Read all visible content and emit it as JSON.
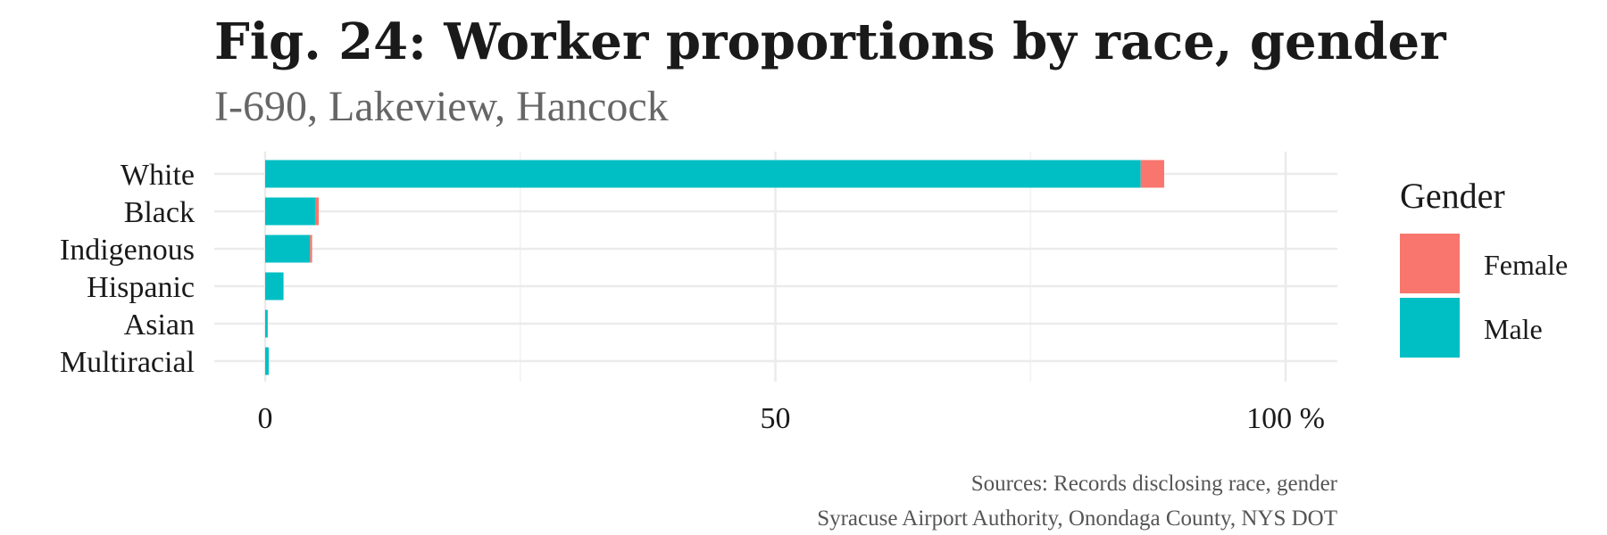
{
  "colors": {
    "female": "#F8766D",
    "male": "#00BFC4"
  },
  "chart_data": {
    "type": "bar",
    "orientation": "horizontal",
    "stacked": true,
    "title": "Fig. 24: Worker proportions by race, gender",
    "subtitle": "I-690, Lakeview, Hancock",
    "categories": [
      "White",
      "Black",
      "Indigenous",
      "Hispanic",
      "Asian",
      "Multiracial"
    ],
    "series": [
      {
        "name": "Male",
        "values": [
          85.8,
          4.9,
          4.4,
          1.8,
          0.25,
          0.35
        ]
      },
      {
        "name": "Female",
        "values": [
          2.3,
          0.35,
          0.2,
          0.0,
          0.0,
          0.0
        ]
      }
    ],
    "xlim": [
      0,
      100
    ],
    "x_ticks": [
      {
        "value": 0,
        "label": "0"
      },
      {
        "value": 50,
        "label": "50"
      },
      {
        "value": 100,
        "label": "100 %"
      }
    ],
    "grid": true,
    "legend": {
      "title": "Gender",
      "position": "right",
      "entries": [
        "Female",
        "Male"
      ]
    },
    "caption": [
      "Sources: Records disclosing race, gender",
      "Syracuse Airport Authority, Onondaga County, NYS DOT"
    ]
  }
}
